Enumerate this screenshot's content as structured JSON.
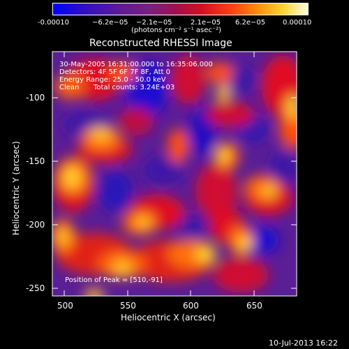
{
  "colorbar": {
    "tick_labels": [
      "-0.00010",
      "−6.2e−05",
      "−2.1e−05",
      "2.1e−05",
      "6.2e−05",
      "0.00010"
    ],
    "unit_label": "(photons cm⁻² s⁻¹ asec⁻²)"
  },
  "title": "Reconstructed RHESSI Image",
  "annotations": {
    "time_range": "30-May-2005 16:31:00.000 to 16:35:06.000",
    "detectors": "Detectors: 4F 5F 6F 7F 8F, Att 0",
    "energy": "Energy Range: 25.0 - 50.0 keV",
    "algorithm": "Clean",
    "counts": "Total counts: 3.24E+03",
    "peak": "Position of Peak = [510,-91]"
  },
  "x_axis": {
    "label": "Heliocentric X (arcsec)",
    "ticks": [
      "500",
      "550",
      "600",
      "650"
    ]
  },
  "y_axis": {
    "label": "Heliocentric Y (arcsec)",
    "ticks": [
      "-100",
      "-150",
      "-200",
      "-250"
    ]
  },
  "footer_timestamp": "10-Jul-2013 16:22",
  "colors": {
    "background": "#000000",
    "colormap": [
      "#0000ff",
      "#4a1a9a",
      "#6b2a8a",
      "#c0104a",
      "#ff3010",
      "#ff8a10",
      "#ffe040",
      "#ffffe0"
    ]
  }
}
